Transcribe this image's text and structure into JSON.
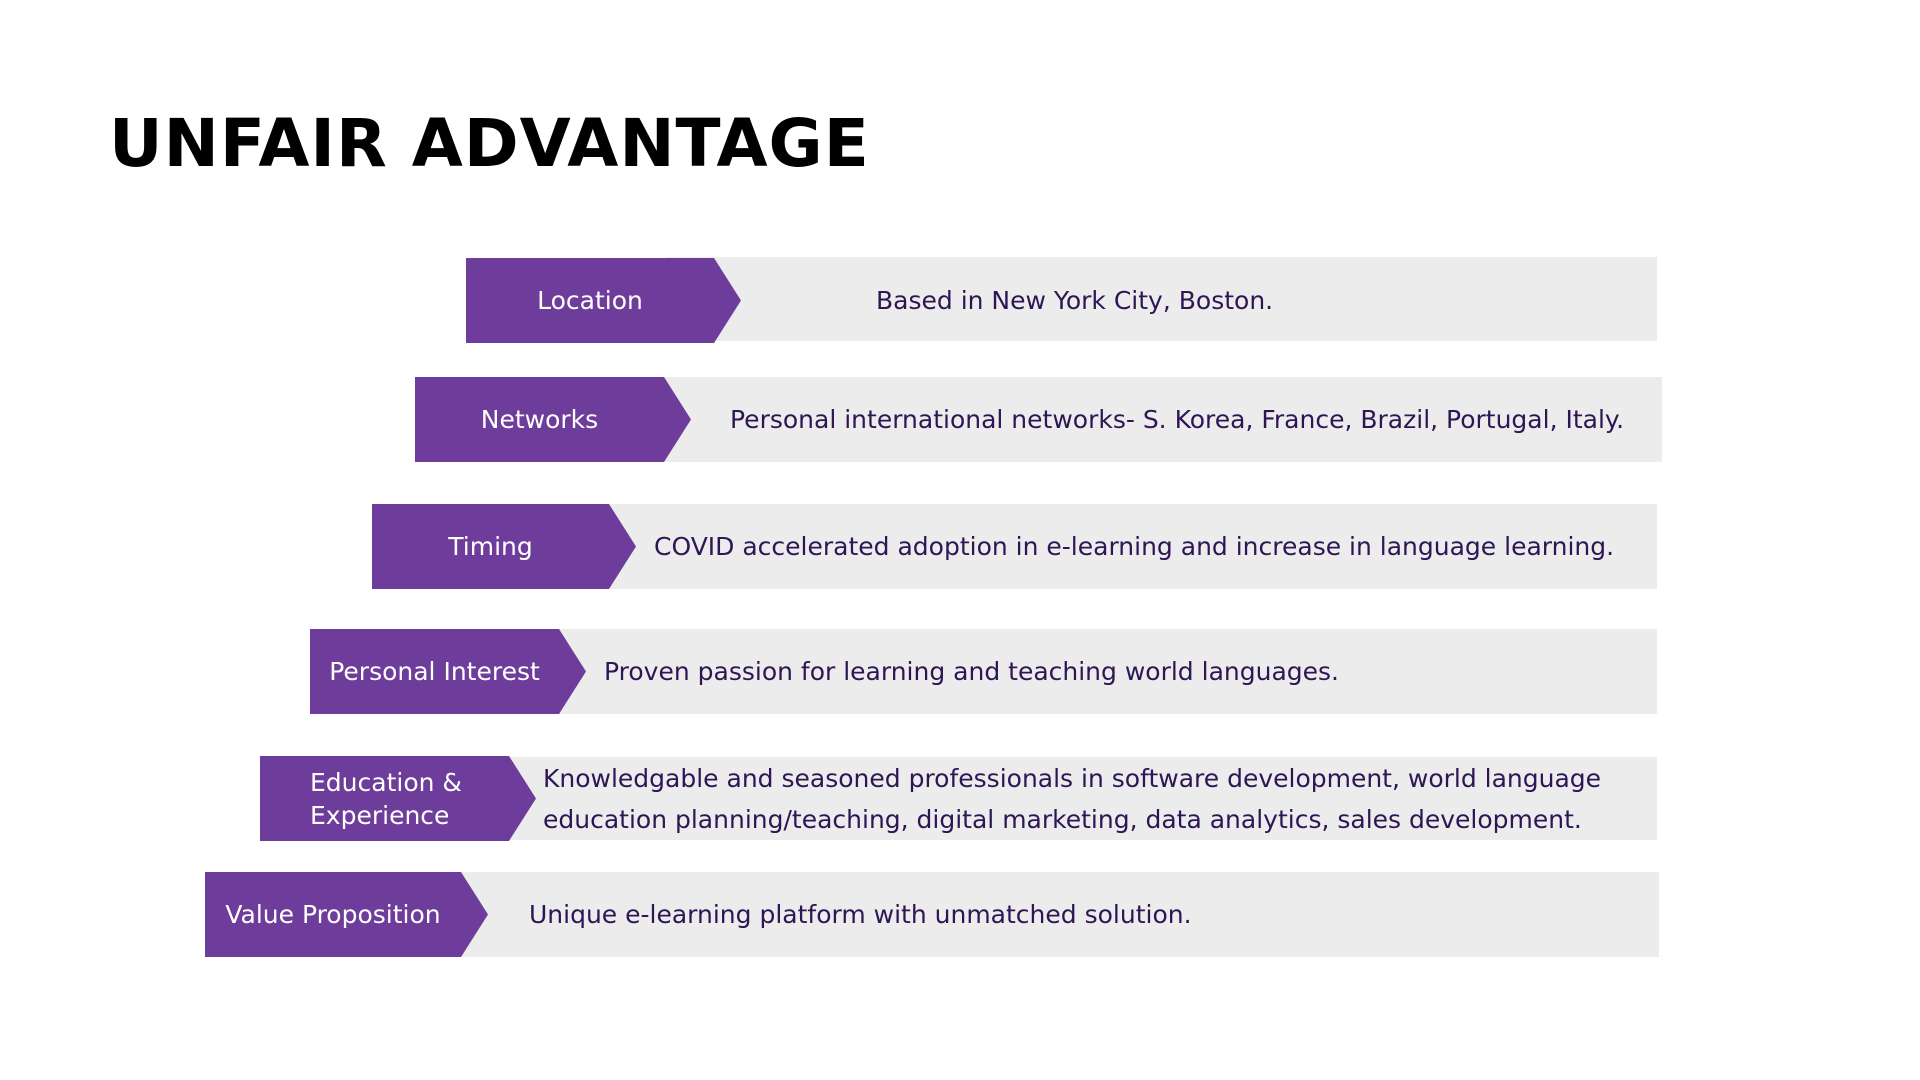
{
  "title": "UNFAIR ADVANTAGE",
  "colors": {
    "tag_fill": "#6e3d9b",
    "bar_fill": "#ececec",
    "description_text": "#2e1655",
    "title_text": "#000000"
  },
  "rows": [
    {
      "label": "Location",
      "description": "Based in New York City, Boston."
    },
    {
      "label": "Networks",
      "description": "Personal international networks- S. Korea, France, Brazil, Portugal, Italy."
    },
    {
      "label": "Timing",
      "description": "COVID accelerated adoption in e-learning and increase in language learning."
    },
    {
      "label": "Personal Interest",
      "description": "Proven passion for learning and teaching world languages."
    },
    {
      "label": "Education & Experience",
      "description": "Knowledgable and seasoned professionals in software development, world language education planning/teaching, digital marketing, data analytics, sales development."
    },
    {
      "label": "Value Proposition",
      "description": "Unique e-learning platform with unmatched solution."
    }
  ]
}
